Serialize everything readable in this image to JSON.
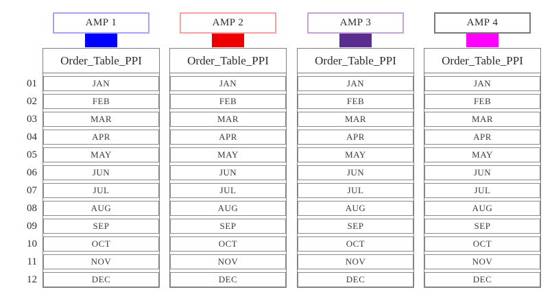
{
  "row_numbers": [
    "01",
    "02",
    "03",
    "04",
    "05",
    "06",
    "07",
    "08",
    "09",
    "10",
    "11",
    "12"
  ],
  "columns": [
    {
      "amp_label": "AMP 1",
      "amp_border_color": "#a3a3f7",
      "connector_color": "#0000ff",
      "table_header": "Order_Table_PPI",
      "months": [
        "JAN",
        "FEB",
        "MAR",
        "APR",
        "MAY",
        "JUN",
        "JUL",
        "AUG",
        "SEP",
        "OCT",
        "NOV",
        "DEC"
      ]
    },
    {
      "amp_label": "AMP 2",
      "amp_border_color": "#f8a0a0",
      "connector_color": "#ee0000",
      "table_header": "Order_Table_PPI",
      "months": [
        "JAN",
        "FEB",
        "MAR",
        "APR",
        "MAY",
        "JUN",
        "JUL",
        "AUG",
        "SEP",
        "OCT",
        "NOV",
        "DEC"
      ]
    },
    {
      "amp_label": "AMP 3",
      "amp_border_color": "#c4a4d8",
      "connector_color": "#5c2d91",
      "table_header": "Order_Table_PPI",
      "months": [
        "JAN",
        "FEB",
        "MAR",
        "APR",
        "MAY",
        "JUN",
        "JUL",
        "AUG",
        "SEP",
        "OCT",
        "NOV",
        "DEC"
      ]
    },
    {
      "amp_label": "AMP 4",
      "amp_border_color": "#787878",
      "connector_color": "#ff00ff",
      "table_header": "Order_Table_PPI",
      "months": [
        "JAN",
        "FEB",
        "MAR",
        "APR",
        "MAY",
        "JUN",
        "JUL",
        "AUG",
        "SEP",
        "OCT",
        "NOV",
        "DEC"
      ]
    }
  ],
  "colors": {
    "table_border": "#7d7d7d",
    "text": "#333333",
    "background": "#ffffff"
  }
}
